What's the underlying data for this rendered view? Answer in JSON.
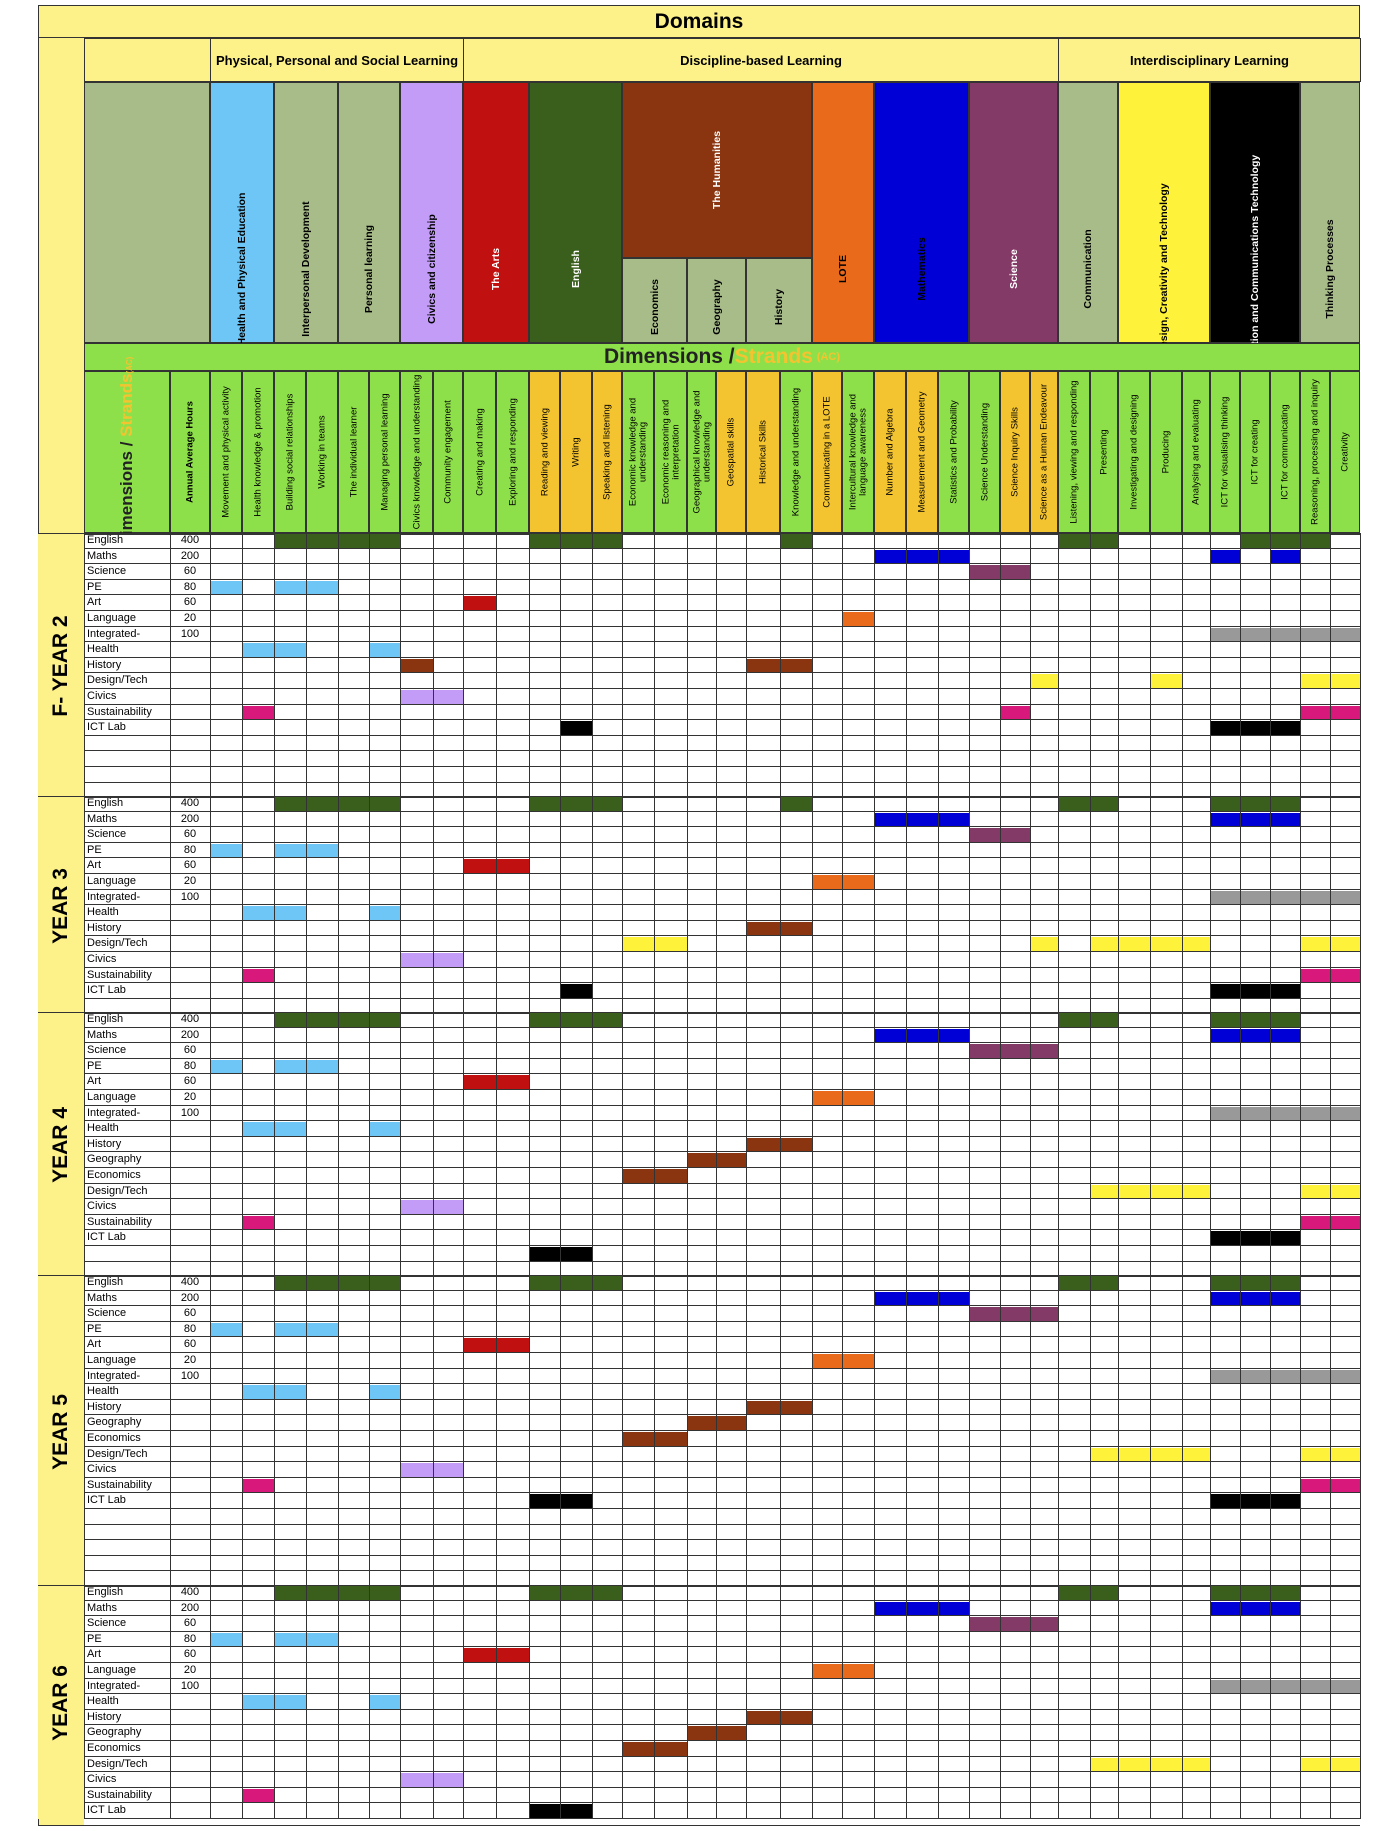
{
  "title": "Domains",
  "dimensions_title": "Dimensions / ",
  "strands_title": "Strands",
  "strands_suffix": "(AC)",
  "col_head_dimensions": "Dimensions / ",
  "col_head_strands": "Strands",
  "col_head_strands_suffix": "(AC)",
  "col_head_hours": "Annual Average Hours",
  "domain_groups": [
    {
      "label": "Physical, Personal and Social Learning"
    },
    {
      "label": "Discipline-based Learning"
    },
    {
      "label": "Interdisciplinary Learning"
    }
  ],
  "colors": {
    "yellow_bg": "#fdf28a",
    "green_bg": "#8ee04a",
    "sage": "#a8bc8a",
    "light_blue": "#6ec6f6",
    "lilac": "#c39cf8",
    "red": "#c01010",
    "dark_green": "#3a5e1c",
    "brown": "#8a3510",
    "orange": "#e86a1a",
    "blue": "#0000d6",
    "plum": "#843a66",
    "bright_yellow": "#fff23a",
    "black": "#000000",
    "grey": "#999999",
    "magenta": "#d8187a",
    "strand_yellow": "#f4c430",
    "light_yellow": "#fff58a"
  },
  "domains": [
    {
      "label": "Health and Physical Education"
    },
    {
      "label": "Interpersonal Development"
    },
    {
      "label": "Personal learning"
    },
    {
      "label": "Civics and citizenship"
    },
    {
      "label": "The Arts"
    },
    {
      "label": "English"
    },
    {
      "label": "The Humanities"
    },
    {
      "label": "Economics"
    },
    {
      "label": "Geography"
    },
    {
      "label": "History"
    },
    {
      "label": "LOTE"
    },
    {
      "label": "Mathematics"
    },
    {
      "label": "Science"
    },
    {
      "label": "Communication"
    },
    {
      "label": "Design, Creativity and Technology"
    },
    {
      "label": "Information and Communications Technology"
    },
    {
      "label": "Thinking Processes"
    }
  ],
  "strands": [
    "Movement and physical activity",
    "Health knowledge & promotion",
    "Building social relationships",
    "Working in teams",
    "The individual learner",
    "Managing personal learning",
    "Civics knowledge and understanding",
    "Community engagement",
    "Creating and making",
    "Exploring and responding",
    "Reading and viewing",
    "Writing",
    "Speaking and listening",
    "Economic knowledge and understanding",
    "Economic reasoning and interpretation",
    "Geographical knowledge and understanding",
    "Geospatial skills",
    "Historical Skills",
    "Knowledge and understanding",
    "Communicating in a LOTE",
    "Intercultural knowledge and language awareness",
    "Number and Algebra",
    "Measurement and Geometry",
    "Statistics and Probability",
    "Science Understanding",
    "Science Inquiry Skills",
    "Science as a Human Endeavour",
    "Listening, viewing and responding",
    "Presenting",
    "Investigating and designing",
    "Producing",
    "Analysing and evaluating",
    "ICT for visualising thinking",
    "ICT for creating",
    "ICT for communicating",
    "Reasoning, processing and inquiry",
    "Creativity"
  ],
  "sections": [
    {
      "label": "F- YEAR 2",
      "rows": [
        {
          "subject": "English",
          "hours": "400"
        },
        {
          "subject": "Maths",
          "hours": "200"
        },
        {
          "subject": "Science",
          "hours": "60"
        },
        {
          "subject": "PE",
          "hours": "80"
        },
        {
          "subject": "Art",
          "hours": "60"
        },
        {
          "subject": "Language",
          "hours": "20"
        },
        {
          "subject": "Integrated-",
          "hours": "100"
        },
        {
          "subject": "Health",
          "hours": ""
        },
        {
          "subject": "History",
          "hours": ""
        },
        {
          "subject": "Design/Tech",
          "hours": ""
        },
        {
          "subject": "Civics",
          "hours": ""
        },
        {
          "subject": "Sustainability",
          "hours": ""
        },
        {
          "subject": "ICT Lab",
          "hours": ""
        },
        {
          "subject": "",
          "hours": ""
        },
        {
          "subject": "",
          "hours": ""
        },
        {
          "subject": "",
          "hours": ""
        },
        {
          "subject": "",
          "hours": ""
        }
      ]
    },
    {
      "label": "YEAR 3",
      "rows": [
        {
          "subject": "English",
          "hours": "400"
        },
        {
          "subject": "Maths",
          "hours": "200"
        },
        {
          "subject": "Science",
          "hours": "60"
        },
        {
          "subject": "PE",
          "hours": "80"
        },
        {
          "subject": "Art",
          "hours": "60"
        },
        {
          "subject": "Language",
          "hours": "20"
        },
        {
          "subject": "Integrated-",
          "hours": "100"
        },
        {
          "subject": "Health",
          "hours": ""
        },
        {
          "subject": "History",
          "hours": ""
        },
        {
          "subject": "Design/Tech",
          "hours": ""
        },
        {
          "subject": "Civics",
          "hours": ""
        },
        {
          "subject": "Sustainability",
          "hours": ""
        },
        {
          "subject": "ICT Lab",
          "hours": ""
        },
        {
          "subject": "",
          "hours": ""
        }
      ]
    },
    {
      "label": "YEAR 4",
      "rows": [
        {
          "subject": "English",
          "hours": "400"
        },
        {
          "subject": "Maths",
          "hours": "200"
        },
        {
          "subject": "Science",
          "hours": "60"
        },
        {
          "subject": "PE",
          "hours": "80"
        },
        {
          "subject": "Art",
          "hours": "60"
        },
        {
          "subject": "Language",
          "hours": "20"
        },
        {
          "subject": "Integrated-",
          "hours": "100"
        },
        {
          "subject": "Health",
          "hours": ""
        },
        {
          "subject": "History",
          "hours": ""
        },
        {
          "subject": "Geography",
          "hours": ""
        },
        {
          "subject": "Economics",
          "hours": ""
        },
        {
          "subject": "Design/Tech",
          "hours": ""
        },
        {
          "subject": "Civics",
          "hours": ""
        },
        {
          "subject": "Sustainability",
          "hours": ""
        },
        {
          "subject": "ICT Lab",
          "hours": ""
        },
        {
          "subject": "",
          "hours": ""
        },
        {
          "subject": "",
          "hours": ""
        }
      ]
    },
    {
      "label": "YEAR 5",
      "rows": [
        {
          "subject": "English",
          "hours": "400"
        },
        {
          "subject": "Maths",
          "hours": "200"
        },
        {
          "subject": "Science",
          "hours": "60"
        },
        {
          "subject": "PE",
          "hours": "80"
        },
        {
          "subject": "Art",
          "hours": "60"
        },
        {
          "subject": "Language",
          "hours": "20"
        },
        {
          "subject": "Integrated-",
          "hours": "100"
        },
        {
          "subject": "Health",
          "hours": ""
        },
        {
          "subject": "History",
          "hours": ""
        },
        {
          "subject": "Geography",
          "hours": ""
        },
        {
          "subject": "Economics",
          "hours": ""
        },
        {
          "subject": "Design/Tech",
          "hours": ""
        },
        {
          "subject": "Civics",
          "hours": ""
        },
        {
          "subject": "Sustainability",
          "hours": ""
        },
        {
          "subject": "ICT Lab",
          "hours": ""
        },
        {
          "subject": "",
          "hours": ""
        },
        {
          "subject": "",
          "hours": ""
        },
        {
          "subject": "",
          "hours": ""
        },
        {
          "subject": "",
          "hours": ""
        },
        {
          "subject": "",
          "hours": ""
        }
      ]
    },
    {
      "label": "YEAR 6",
      "rows": [
        {
          "subject": "English",
          "hours": "400"
        },
        {
          "subject": "Maths",
          "hours": "200"
        },
        {
          "subject": "Science",
          "hours": "60"
        },
        {
          "subject": "PE",
          "hours": "80"
        },
        {
          "subject": "Art",
          "hours": "60"
        },
        {
          "subject": "Language",
          "hours": "20"
        },
        {
          "subject": "Integrated-",
          "hours": "100"
        },
        {
          "subject": "Health",
          "hours": ""
        },
        {
          "subject": "History",
          "hours": ""
        },
        {
          "subject": "Geography",
          "hours": ""
        },
        {
          "subject": "Economics",
          "hours": ""
        },
        {
          "subject": "Design/Tech",
          "hours": ""
        },
        {
          "subject": "Civics",
          "hours": ""
        },
        {
          "subject": "Sustainability",
          "hours": ""
        },
        {
          "subject": "ICT Lab",
          "hours": ""
        }
      ]
    }
  ],
  "fills": [
    {
      "section": 0,
      "row": 0,
      "cols": [
        2,
        3,
        4,
        5,
        10,
        11,
        12,
        18,
        27,
        28,
        33,
        34,
        35
      ],
      "color": "dark_green"
    },
    {
      "section": 0,
      "row": 1,
      "cols": [
        21,
        22,
        23,
        32,
        34
      ],
      "color": "blue"
    },
    {
      "section": 0,
      "row": 2,
      "cols": [
        24,
        25
      ],
      "color": "plum"
    },
    {
      "section": 0,
      "row": 3,
      "cols": [
        0,
        2,
        3
      ],
      "color": "light_blue"
    },
    {
      "section": 0,
      "row": 4,
      "cols": [
        8
      ],
      "color": "red"
    },
    {
      "section": 0,
      "row": 5,
      "cols": [
        20
      ],
      "color": "orange"
    },
    {
      "section": 0,
      "row": 6,
      "cols": [
        32,
        33,
        34,
        35,
        36
      ],
      "color": "grey"
    },
    {
      "section": 0,
      "row": 7,
      "cols": [
        1,
        2,
        5
      ],
      "color": "light_blue"
    },
    {
      "section": 0,
      "row": 8,
      "cols": [
        6,
        17,
        18
      ],
      "color": "brown"
    },
    {
      "section": 0,
      "row": 9,
      "cols": [
        26,
        30,
        35,
        36
      ],
      "color": "bright_yellow"
    },
    {
      "section": 0,
      "row": 10,
      "cols": [
        6,
        7
      ],
      "color": "lilac"
    },
    {
      "section": 0,
      "row": 11,
      "cols": [
        1,
        25,
        35,
        36
      ],
      "color": "magenta"
    },
    {
      "section": 0,
      "row": 12,
      "cols": [
        11,
        32,
        33,
        34
      ],
      "color": "black"
    },
    {
      "section": 1,
      "row": 0,
      "cols": [
        2,
        3,
        4,
        5,
        10,
        11,
        12,
        18,
        27,
        28,
        32,
        33,
        34
      ],
      "color": "dark_green"
    },
    {
      "section": 1,
      "row": 1,
      "cols": [
        21,
        22,
        23,
        32,
        33,
        34
      ],
      "color": "blue"
    },
    {
      "section": 1,
      "row": 2,
      "cols": [
        24,
        25
      ],
      "color": "plum"
    },
    {
      "section": 1,
      "row": 3,
      "cols": [
        0,
        2,
        3
      ],
      "color": "light_blue"
    },
    {
      "section": 1,
      "row": 4,
      "cols": [
        8,
        9
      ],
      "color": "red"
    },
    {
      "section": 1,
      "row": 5,
      "cols": [
        19,
        20
      ],
      "color": "orange"
    },
    {
      "section": 1,
      "row": 6,
      "cols": [
        32,
        33,
        34,
        35,
        36
      ],
      "color": "grey"
    },
    {
      "section": 1,
      "row": 7,
      "cols": [
        1,
        2,
        5
      ],
      "color": "light_blue"
    },
    {
      "section": 1,
      "row": 8,
      "cols": [
        17,
        18
      ],
      "color": "brown"
    },
    {
      "section": 1,
      "row": 9,
      "cols": [
        13,
        14,
        26,
        28,
        29,
        30,
        31,
        35,
        36
      ],
      "color": "bright_yellow"
    },
    {
      "section": 1,
      "row": 10,
      "cols": [
        6,
        7
      ],
      "color": "lilac"
    },
    {
      "section": 1,
      "row": 11,
      "cols": [
        1,
        35,
        36
      ],
      "color": "magenta"
    },
    {
      "section": 1,
      "row": 12,
      "cols": [
        11,
        32,
        33,
        34
      ],
      "color": "black"
    },
    {
      "section": 2,
      "row": 0,
      "cols": [
        2,
        3,
        4,
        5,
        10,
        11,
        12,
        27,
        28,
        32,
        33,
        34
      ],
      "color": "dark_green"
    },
    {
      "section": 2,
      "row": 1,
      "cols": [
        21,
        22,
        23,
        32,
        33,
        34
      ],
      "color": "blue"
    },
    {
      "section": 2,
      "row": 2,
      "cols": [
        24,
        25,
        26
      ],
      "color": "plum"
    },
    {
      "section": 2,
      "row": 3,
      "cols": [
        0,
        2,
        3
      ],
      "color": "light_blue"
    },
    {
      "section": 2,
      "row": 4,
      "cols": [
        8,
        9
      ],
      "color": "red"
    },
    {
      "section": 2,
      "row": 5,
      "cols": [
        19,
        20
      ],
      "color": "orange"
    },
    {
      "section": 2,
      "row": 6,
      "cols": [
        32,
        33,
        34,
        35,
        36
      ],
      "color": "grey"
    },
    {
      "section": 2,
      "row": 7,
      "cols": [
        1,
        2,
        5
      ],
      "color": "light_blue"
    },
    {
      "section": 2,
      "row": 8,
      "cols": [
        17,
        18
      ],
      "color": "brown"
    },
    {
      "section": 2,
      "row": 9,
      "cols": [
        15,
        16
      ],
      "color": "brown"
    },
    {
      "section": 2,
      "row": 10,
      "cols": [
        13,
        14
      ],
      "color": "brown"
    },
    {
      "section": 2,
      "row": 11,
      "cols": [
        28,
        29,
        30,
        31,
        35,
        36
      ],
      "color": "bright_yellow"
    },
    {
      "section": 2,
      "row": 12,
      "cols": [
        6,
        7
      ],
      "color": "lilac"
    },
    {
      "section": 2,
      "row": 13,
      "cols": [
        1,
        35,
        36
      ],
      "color": "magenta"
    },
    {
      "section": 2,
      "row": 14,
      "cols": [
        32,
        33,
        34
      ],
      "color": "black"
    },
    {
      "section": 2,
      "row": 15,
      "cols": [
        10,
        11
      ],
      "color": "black"
    },
    {
      "section": 3,
      "row": 0,
      "cols": [
        2,
        3,
        4,
        5,
        10,
        11,
        12,
        27,
        28,
        32,
        33,
        34
      ],
      "color": "dark_green"
    },
    {
      "section": 3,
      "row": 1,
      "cols": [
        21,
        22,
        23,
        32,
        33,
        34
      ],
      "color": "blue"
    },
    {
      "section": 3,
      "row": 2,
      "cols": [
        24,
        25,
        26
      ],
      "color": "plum"
    },
    {
      "section": 3,
      "row": 3,
      "cols": [
        0,
        2,
        3
      ],
      "color": "light_blue"
    },
    {
      "section": 3,
      "row": 4,
      "cols": [
        8,
        9
      ],
      "color": "red"
    },
    {
      "section": 3,
      "row": 5,
      "cols": [
        19,
        20
      ],
      "color": "orange"
    },
    {
      "section": 3,
      "row": 6,
      "cols": [
        32,
        33,
        34,
        35,
        36
      ],
      "color": "grey"
    },
    {
      "section": 3,
      "row": 7,
      "cols": [
        1,
        2,
        5
      ],
      "color": "light_blue"
    },
    {
      "section": 3,
      "row": 8,
      "cols": [
        17,
        18
      ],
      "color": "brown"
    },
    {
      "section": 3,
      "row": 9,
      "cols": [
        15,
        16
      ],
      "color": "brown"
    },
    {
      "section": 3,
      "row": 10,
      "cols": [
        13,
        14
      ],
      "color": "brown"
    },
    {
      "section": 3,
      "row": 11,
      "cols": [
        28,
        29,
        30,
        31,
        35,
        36
      ],
      "color": "bright_yellow"
    },
    {
      "section": 3,
      "row": 12,
      "cols": [
        6,
        7
      ],
      "color": "lilac"
    },
    {
      "section": 3,
      "row": 13,
      "cols": [
        1,
        35,
        36
      ],
      "color": "magenta"
    },
    {
      "section": 3,
      "row": 14,
      "cols": [
        10,
        11,
        32,
        33,
        34
      ],
      "color": "black"
    },
    {
      "section": 4,
      "row": 0,
      "cols": [
        2,
        3,
        4,
        5,
        10,
        11,
        12,
        27,
        28,
        32,
        33,
        34
      ],
      "color": "dark_green"
    },
    {
      "section": 4,
      "row": 1,
      "cols": [
        21,
        22,
        23,
        32,
        33,
        34
      ],
      "color": "blue"
    },
    {
      "section": 4,
      "row": 2,
      "cols": [
        24,
        25,
        26
      ],
      "color": "plum"
    },
    {
      "section": 4,
      "row": 3,
      "cols": [
        0,
        2,
        3
      ],
      "color": "light_blue"
    },
    {
      "section": 4,
      "row": 4,
      "cols": [
        8,
        9
      ],
      "color": "red"
    },
    {
      "section": 4,
      "row": 5,
      "cols": [
        19,
        20
      ],
      "color": "orange"
    },
    {
      "section": 4,
      "row": 6,
      "cols": [
        32,
        33,
        34,
        35,
        36
      ],
      "color": "grey"
    },
    {
      "section": 4,
      "row": 7,
      "cols": [
        1,
        2,
        5
      ],
      "color": "light_blue"
    },
    {
      "section": 4,
      "row": 8,
      "cols": [
        17,
        18
      ],
      "color": "brown"
    },
    {
      "section": 4,
      "row": 9,
      "cols": [
        15,
        16
      ],
      "color": "brown"
    },
    {
      "section": 4,
      "row": 10,
      "cols": [
        13,
        14
      ],
      "color": "brown"
    },
    {
      "section": 4,
      "row": 11,
      "cols": [
        28,
        29,
        30,
        31,
        35,
        36
      ],
      "color": "bright_yellow"
    },
    {
      "section": 4,
      "row": 12,
      "cols": [
        6,
        7
      ],
      "color": "lilac"
    },
    {
      "section": 4,
      "row": 13,
      "cols": [
        1
      ],
      "color": "magenta"
    },
    {
      "section": 4,
      "row": 14,
      "cols": [
        10,
        11
      ],
      "color": "black"
    }
  ]
}
